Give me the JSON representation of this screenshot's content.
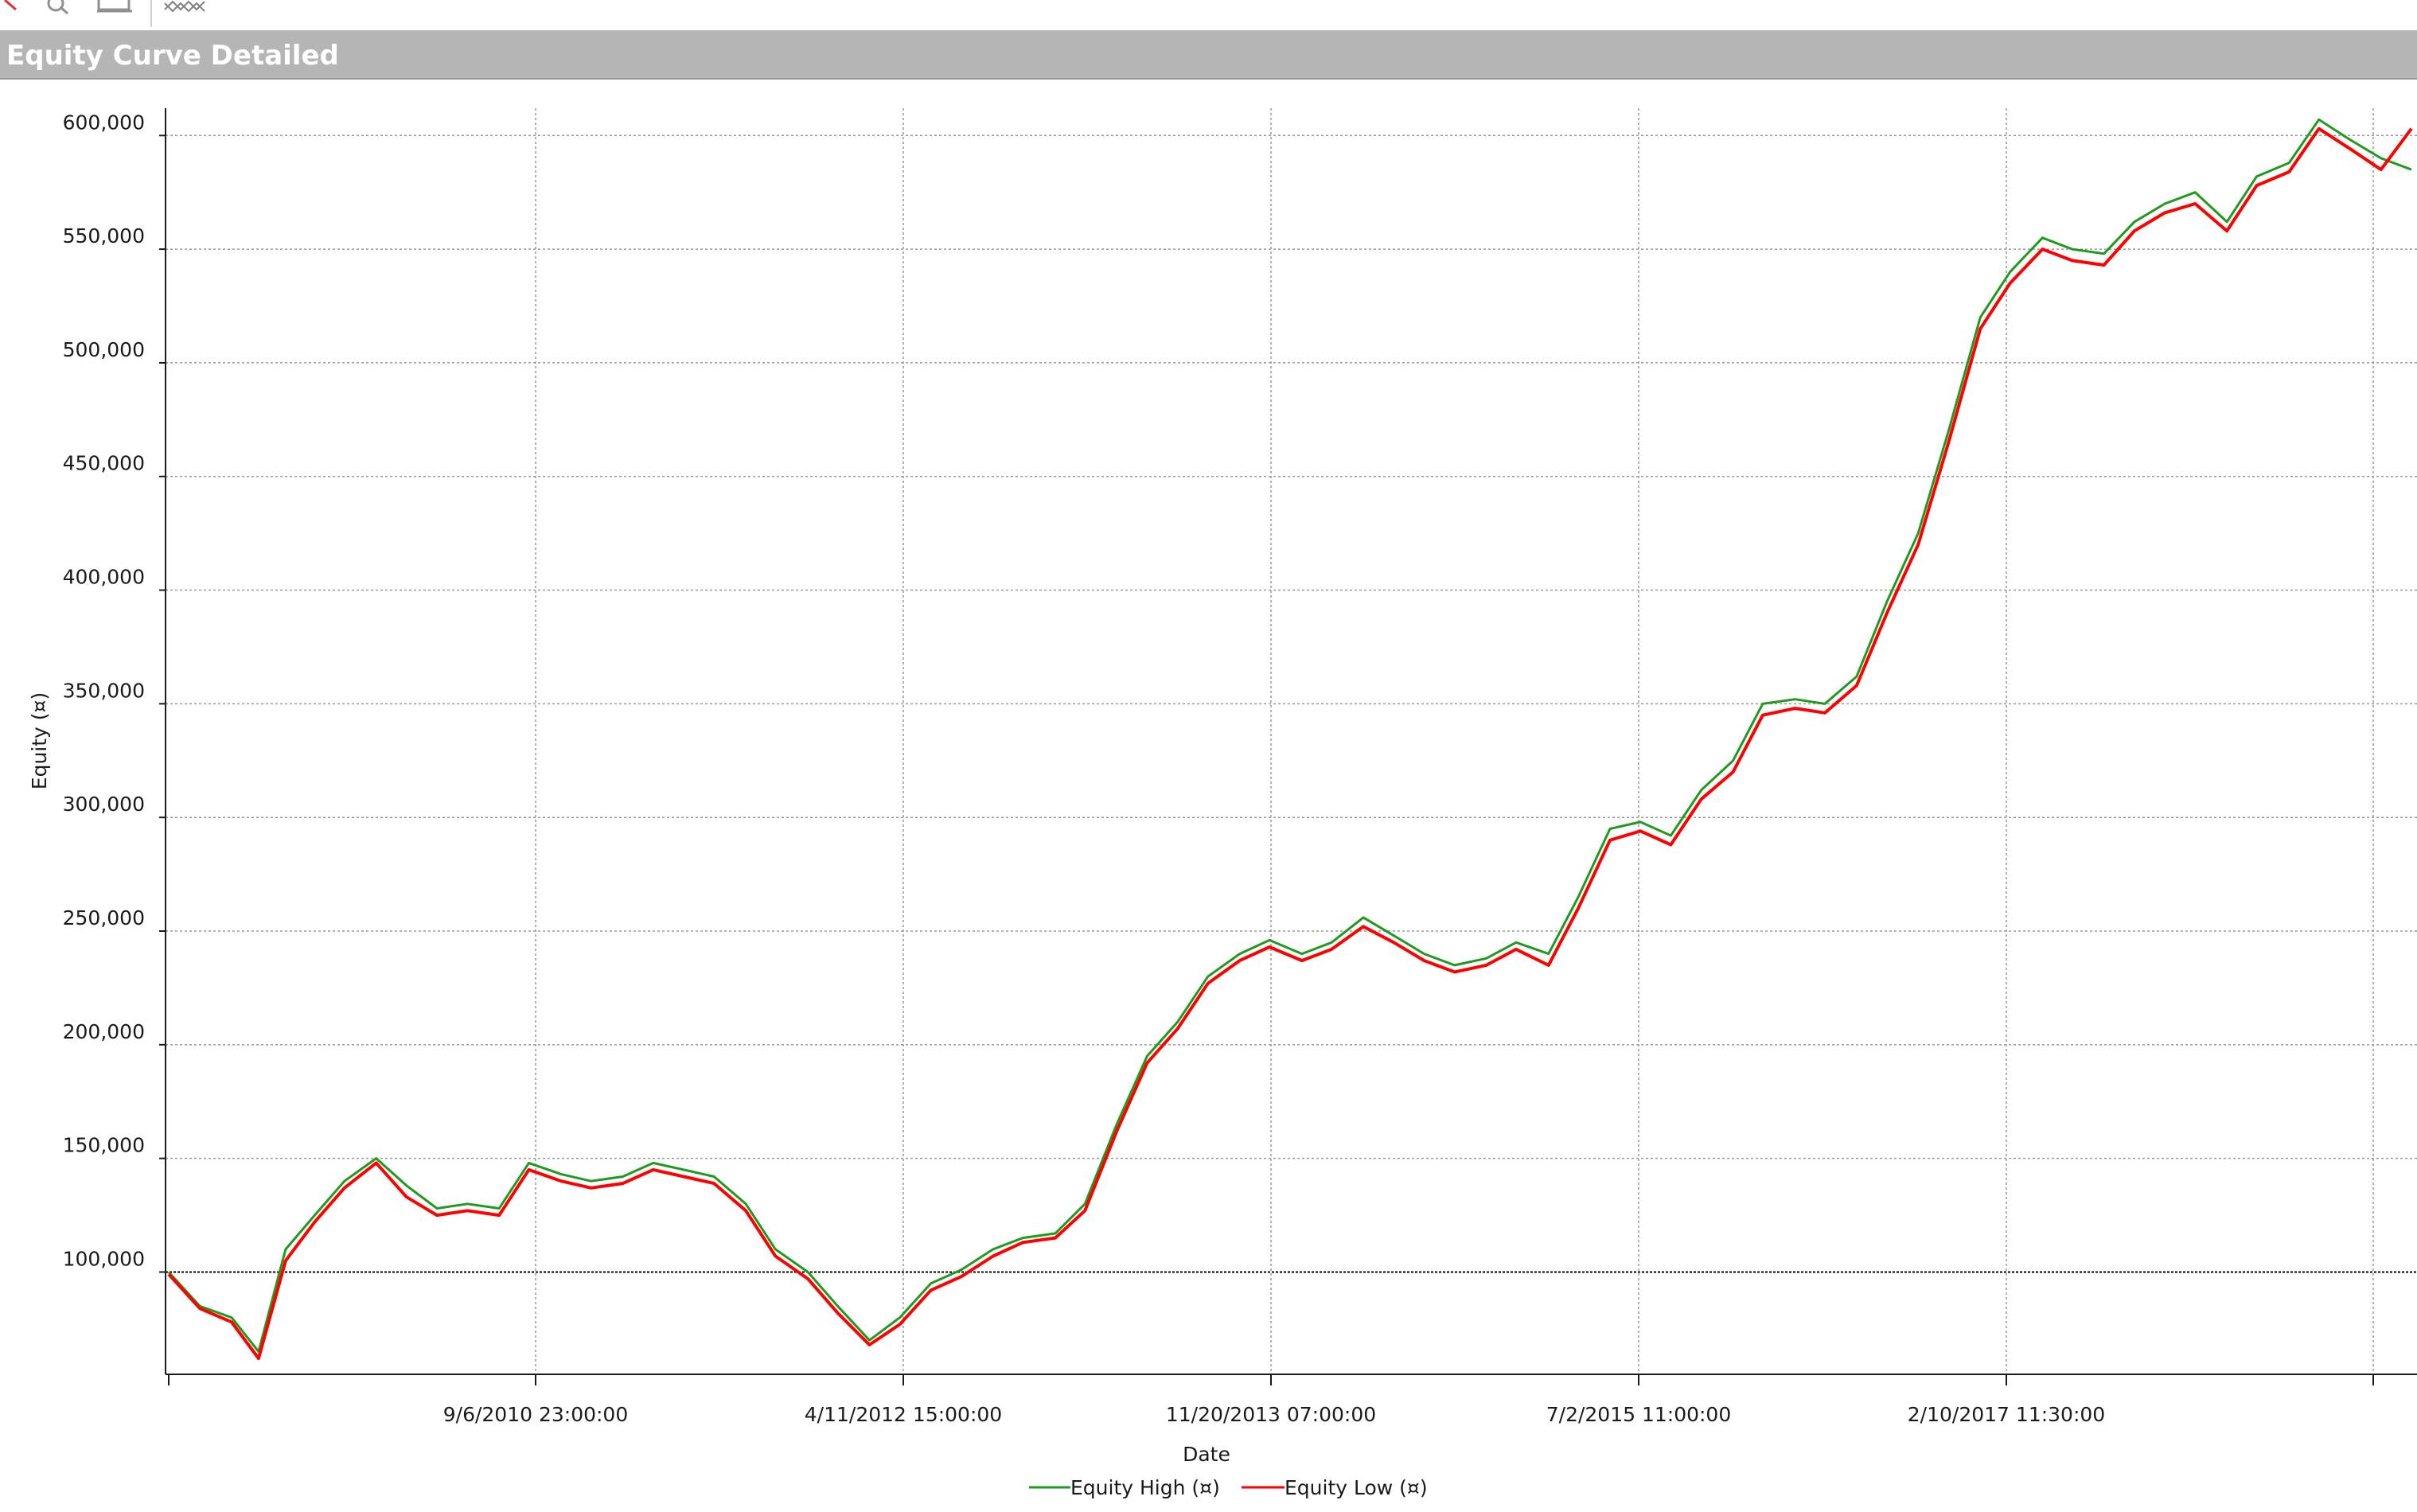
{
  "window": {
    "title": "Equity Curve Detailed"
  },
  "toolbar": {
    "icons": [
      "pointer-icon",
      "zoom-icon",
      "export-icon",
      "surface-icon"
    ]
  },
  "colors": {
    "title_bar": "#b5b5b5",
    "equity_high": "#1f9a1f",
    "equity_low": "#ff0000",
    "grid": "#9a9a9a",
    "baseline": "#000000"
  },
  "chart_data": {
    "type": "line",
    "title": "Equity Curve Detailed",
    "xlabel": "Date",
    "ylabel": "Equity (¤)",
    "ylim": [
      55000,
      612000
    ],
    "y_ticks": [
      100000,
      150000,
      200000,
      250000,
      300000,
      350000,
      400000,
      450000,
      500000,
      550000,
      600000
    ],
    "y_tick_labels": [
      "100,000",
      "150,000",
      "200,000",
      "250,000",
      "300,000",
      "350,000",
      "400,000",
      "450,000",
      "500,000",
      "550,000",
      "600,000"
    ],
    "x_tick_labels": [
      "9/6/2010 23:00:00",
      "4/11/2012 15:00:00",
      "11/20/2013 07:00:00",
      "7/2/2015 11:00:00",
      "2/10/2017 11:30:00"
    ],
    "x_range": [
      "2009-01-28",
      "2018-03-01"
    ],
    "baseline": 100000,
    "grid": true,
    "legend_position": "bottom-center",
    "series": [
      {
        "name": "Equity High (¤)",
        "x": [
          "2009-01-28",
          "2009-03-15",
          "2009-05-01",
          "2009-06-10",
          "2009-07-20",
          "2009-09-01",
          "2009-10-15",
          "2009-12-01",
          "2010-01-15",
          "2010-03-01",
          "2010-04-15",
          "2010-06-01",
          "2010-07-15",
          "2010-09-01",
          "2010-10-15",
          "2010-12-01",
          "2011-01-15",
          "2011-03-01",
          "2011-04-15",
          "2011-06-01",
          "2011-07-15",
          "2011-09-01",
          "2011-10-15",
          "2011-12-01",
          "2012-01-15",
          "2012-03-01",
          "2012-04-15",
          "2012-06-01",
          "2012-07-15",
          "2012-09-01",
          "2012-10-15",
          "2012-12-01",
          "2013-01-15",
          "2013-03-01",
          "2013-04-15",
          "2013-06-01",
          "2013-07-15",
          "2013-09-01",
          "2013-10-15",
          "2013-12-01",
          "2014-01-15",
          "2014-03-01",
          "2014-04-15",
          "2014-06-01",
          "2014-07-15",
          "2014-09-01",
          "2014-10-15",
          "2014-12-01",
          "2015-01-15",
          "2015-03-01",
          "2015-04-15",
          "2015-06-01",
          "2015-07-15",
          "2015-09-01",
          "2015-10-15",
          "2015-12-01",
          "2016-01-15",
          "2016-03-01",
          "2016-04-15",
          "2016-06-01",
          "2016-07-15",
          "2016-09-01",
          "2016-10-15",
          "2016-12-01",
          "2017-01-15",
          "2017-03-01",
          "2017-04-15",
          "2017-06-01",
          "2017-07-15",
          "2017-09-01",
          "2017-10-15",
          "2017-12-01",
          "2018-01-15",
          "2018-03-01"
        ],
        "values": [
          100000,
          85000,
          80000,
          65000,
          110000,
          125000,
          140000,
          150000,
          138000,
          128000,
          130000,
          128000,
          148000,
          143000,
          140000,
          142000,
          148000,
          145000,
          142000,
          130000,
          110000,
          100000,
          85000,
          70000,
          80000,
          95000,
          101000,
          110000,
          115000,
          117000,
          130000,
          165000,
          195000,
          210000,
          230000,
          240000,
          246000,
          240000,
          245000,
          256000,
          248000,
          240000,
          235000,
          238000,
          245000,
          240000,
          265000,
          295000,
          298000,
          292000,
          312000,
          325000,
          350000,
          352000,
          350000,
          362000,
          395000,
          425000,
          470000,
          520000,
          540000,
          555000,
          550000,
          548000,
          562000,
          570000,
          575000,
          562000,
          582000,
          588000,
          607000,
          598000,
          590000,
          585000
        ]
      },
      {
        "name": "Equity Low (¤)",
        "x": [
          "2009-01-28",
          "2009-03-15",
          "2009-05-01",
          "2009-06-10",
          "2009-07-20",
          "2009-09-01",
          "2009-10-15",
          "2009-12-01",
          "2010-01-15",
          "2010-03-01",
          "2010-04-15",
          "2010-06-01",
          "2010-07-15",
          "2010-09-01",
          "2010-10-15",
          "2010-12-01",
          "2011-01-15",
          "2011-03-01",
          "2011-04-15",
          "2011-06-01",
          "2011-07-15",
          "2011-09-01",
          "2011-10-15",
          "2011-12-01",
          "2012-01-15",
          "2012-03-01",
          "2012-04-15",
          "2012-06-01",
          "2012-07-15",
          "2012-09-01",
          "2012-10-15",
          "2012-12-01",
          "2013-01-15",
          "2013-03-01",
          "2013-04-15",
          "2013-06-01",
          "2013-07-15",
          "2013-09-01",
          "2013-10-15",
          "2013-12-01",
          "2014-01-15",
          "2014-03-01",
          "2014-04-15",
          "2014-06-01",
          "2014-07-15",
          "2014-09-01",
          "2014-10-15",
          "2014-12-01",
          "2015-01-15",
          "2015-03-01",
          "2015-04-15",
          "2015-06-01",
          "2015-07-15",
          "2015-09-01",
          "2015-10-15",
          "2015-12-01",
          "2016-01-15",
          "2016-03-01",
          "2016-04-15",
          "2016-06-01",
          "2016-07-15",
          "2016-09-01",
          "2016-10-15",
          "2016-12-01",
          "2017-01-15",
          "2017-03-01",
          "2017-04-15",
          "2017-06-01",
          "2017-07-15",
          "2017-09-01",
          "2017-10-15",
          "2017-12-01",
          "2018-01-15",
          "2018-03-01"
        ],
        "values": [
          99000,
          84000,
          78000,
          62000,
          105000,
          122000,
          137000,
          148000,
          133000,
          125000,
          127000,
          125000,
          145000,
          140000,
          137000,
          139000,
          145000,
          142000,
          139000,
          127000,
          107000,
          97000,
          82000,
          68000,
          77000,
          92000,
          98000,
          107000,
          113000,
          115000,
          127000,
          162000,
          192000,
          207000,
          227000,
          237000,
          243000,
          237000,
          242000,
          252000,
          245000,
          237000,
          232000,
          235000,
          242000,
          235000,
          260000,
          290000,
          294000,
          288000,
          308000,
          320000,
          345000,
          348000,
          346000,
          358000,
          390000,
          420000,
          465000,
          515000,
          535000,
          550000,
          545000,
          543000,
          558000,
          566000,
          570000,
          558000,
          578000,
          584000,
          603000,
          594000,
          585000,
          603000
        ]
      }
    ]
  }
}
